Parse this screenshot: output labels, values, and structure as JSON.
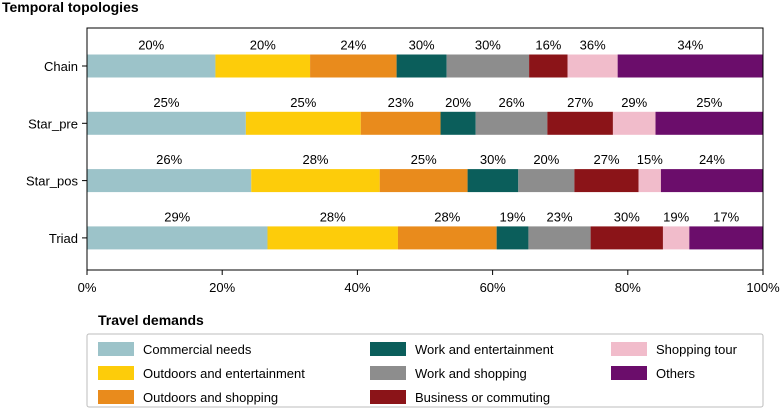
{
  "chart_data": {
    "type": "bar",
    "orientation": "horizontal",
    "stacked": true,
    "title": "Temporal topologies",
    "categories": [
      "Chain",
      "Star_pre",
      "Star_pos",
      "Triad"
    ],
    "x_ticks": [
      "0%",
      "20%",
      "40%",
      "60%",
      "80%",
      "100%"
    ],
    "xlim": [
      0,
      100
    ],
    "legend_title": "Travel demands",
    "legend_position": "bottom",
    "grid": false,
    "series": [
      {
        "name": "Commercial needs",
        "color": "#9cc3c9",
        "values": [
          19.0,
          23.5,
          24.3,
          26.7
        ],
        "labels": [
          "20%",
          "25%",
          "26%",
          "29%"
        ]
      },
      {
        "name": "Outdoors and entertainment",
        "color": "#fdcc0a",
        "values": [
          14.0,
          17.0,
          19.0,
          19.3
        ],
        "labels": [
          "20%",
          "25%",
          "28%",
          "28%"
        ]
      },
      {
        "name": "Outdoors and shopping",
        "color": "#e98b1c",
        "values": [
          12.8,
          11.8,
          13.0,
          14.6
        ],
        "labels": [
          "24%",
          "23%",
          "25%",
          "28%"
        ]
      },
      {
        "name": "Work and entertainment",
        "color": "#0b5e5b",
        "values": [
          7.4,
          5.2,
          7.5,
          4.7
        ],
        "labels": [
          "30%",
          "20%",
          "30%",
          "19%"
        ]
      },
      {
        "name": "Work and shopping",
        "color": "#8d8d8d",
        "values": [
          12.2,
          10.6,
          8.3,
          9.2
        ],
        "labels": [
          "30%",
          "26%",
          "20%",
          "23%"
        ]
      },
      {
        "name": "Business or commuting",
        "color": "#8b1418",
        "values": [
          5.7,
          9.7,
          9.5,
          10.7
        ],
        "labels": [
          "16%",
          "27%",
          "27%",
          "30%"
        ]
      },
      {
        "name": "Shopping tour",
        "color": "#f1bccb",
        "values": [
          7.4,
          6.3,
          3.3,
          3.9
        ],
        "labels": [
          "36%",
          "29%",
          "15%",
          "19%"
        ]
      },
      {
        "name": "Others",
        "color": "#6b0d6b",
        "values": [
          21.5,
          15.9,
          15.1,
          10.9
        ],
        "labels": [
          "34%",
          "25%",
          "24%",
          "17%"
        ]
      }
    ]
  }
}
